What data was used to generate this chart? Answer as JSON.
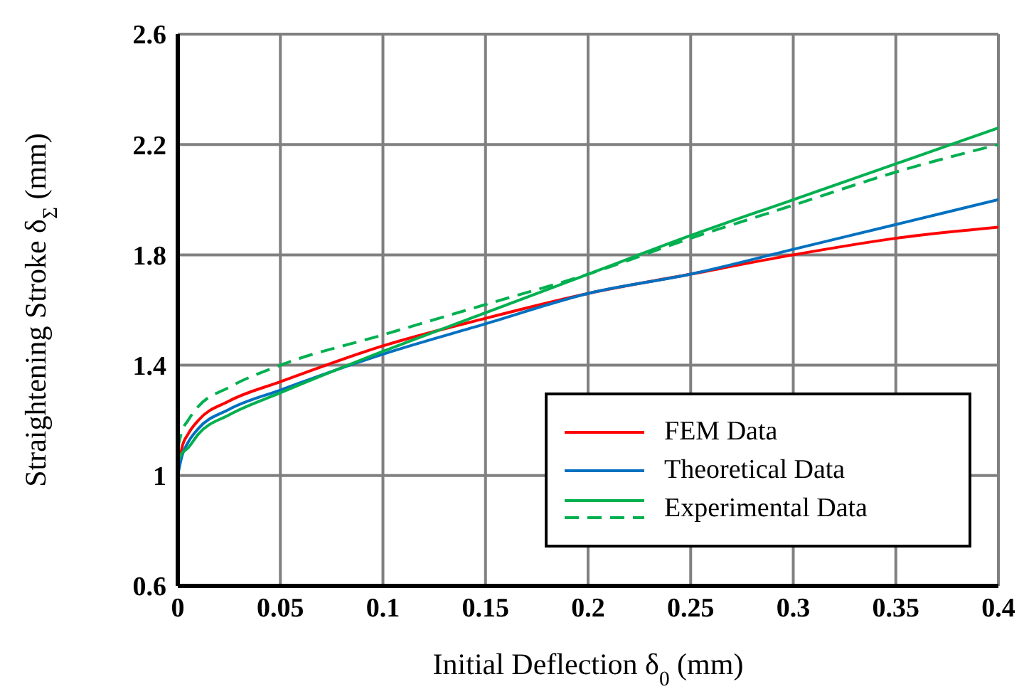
{
  "chart_data": {
    "type": "line",
    "xlabel": "Initial Deflection δ$_{0}$ (mm)",
    "ylabel": "Straightening Stroke δ$_{Σ}$ (mm)",
    "x": [
      0,
      0.002,
      0.005,
      0.01,
      0.025,
      0.05,
      0.1,
      0.15,
      0.2,
      0.25,
      0.3,
      0.35,
      0.4
    ],
    "series": [
      {
        "name": "FEM Data",
        "color": "#ff0000",
        "values": [
          1.0,
          1.1,
          1.15,
          1.2,
          1.27,
          1.34,
          1.47,
          1.57,
          1.66,
          1.73,
          1.8,
          1.86,
          1.9
        ]
      },
      {
        "name": "Theoretical Data",
        "color": "#0070c0",
        "values": [
          1.0,
          1.07,
          1.12,
          1.17,
          1.24,
          1.31,
          1.44,
          1.55,
          1.66,
          1.73,
          1.82,
          1.91,
          2.0
        ]
      },
      {
        "name": "Experimental Data",
        "color": "#00b050",
        "values": [
          1.05,
          1.08,
          1.1,
          1.15,
          1.22,
          1.3,
          1.45,
          1.59,
          1.73,
          1.87,
          2.0,
          2.13,
          2.26
        ]
      },
      {
        "color": "#00b050",
        "line_style": "dashed",
        "values": [
          1.1,
          1.16,
          1.2,
          1.25,
          1.32,
          1.4,
          1.51,
          1.62,
          1.73,
          1.86,
          1.98,
          2.1,
          2.2
        ]
      }
    ],
    "xlim": [
      0,
      0.4
    ],
    "xticks": [
      0,
      0.05,
      0.1,
      0.15,
      0.2,
      0.25,
      0.3,
      0.35,
      0.4
    ],
    "ylim": [
      0.6,
      2.6
    ],
    "yticks": [
      0.6,
      1,
      1.4,
      1.8,
      2.2,
      2.6
    ],
    "grid": true,
    "legend": "bottom right",
    "marker": "none",
    "line_style": "solid"
  }
}
